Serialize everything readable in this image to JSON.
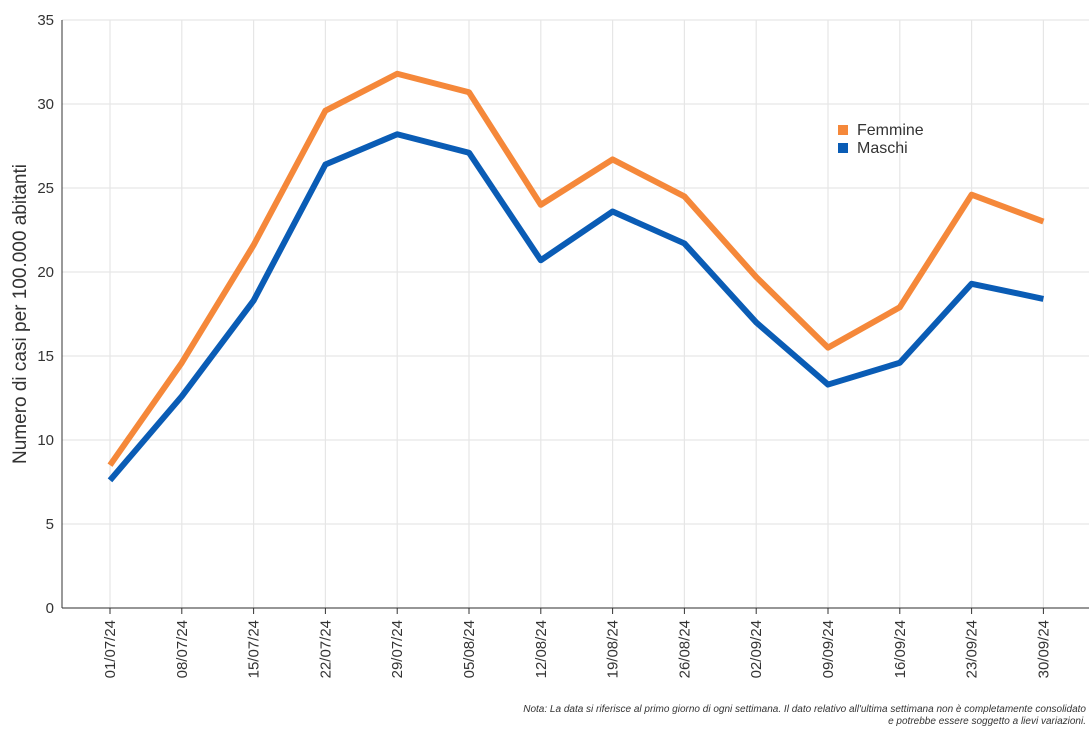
{
  "chart_data": {
    "type": "line",
    "y_label": "Numero di casi per 100.000 abitanti",
    "categories": [
      "01/07/24",
      "08/07/24",
      "15/07/24",
      "22/07/24",
      "29/07/24",
      "05/08/24",
      "12/08/24",
      "19/08/24",
      "26/08/24",
      "02/09/24",
      "09/09/24",
      "16/09/24",
      "23/09/24",
      "30/09/24"
    ],
    "series": [
      {
        "name": "Femmine",
        "color": "#f5883a",
        "values": [
          8.5,
          14.6,
          21.6,
          29.6,
          31.8,
          30.7,
          24.0,
          26.7,
          24.5,
          19.7,
          15.5,
          17.9,
          24.6,
          23.0
        ]
      },
      {
        "name": "Maschi",
        "color": "#0a5cb5",
        "values": [
          7.6,
          12.6,
          18.3,
          26.4,
          28.2,
          27.1,
          20.7,
          23.6,
          21.7,
          17.0,
          13.3,
          14.6,
          19.3,
          18.4
        ]
      }
    ],
    "ylim": [
      0,
      35
    ],
    "yticks": [
      0,
      5,
      10,
      15,
      20,
      25,
      30,
      35
    ],
    "grid": true,
    "notes": [
      "Nota: La data si riferisce al primo giorno di ogni settimana. Il dato relativo all'ultima settimana non è completamente consolidato",
      "e potrebbe essere soggetto a lievi variazioni."
    ]
  }
}
